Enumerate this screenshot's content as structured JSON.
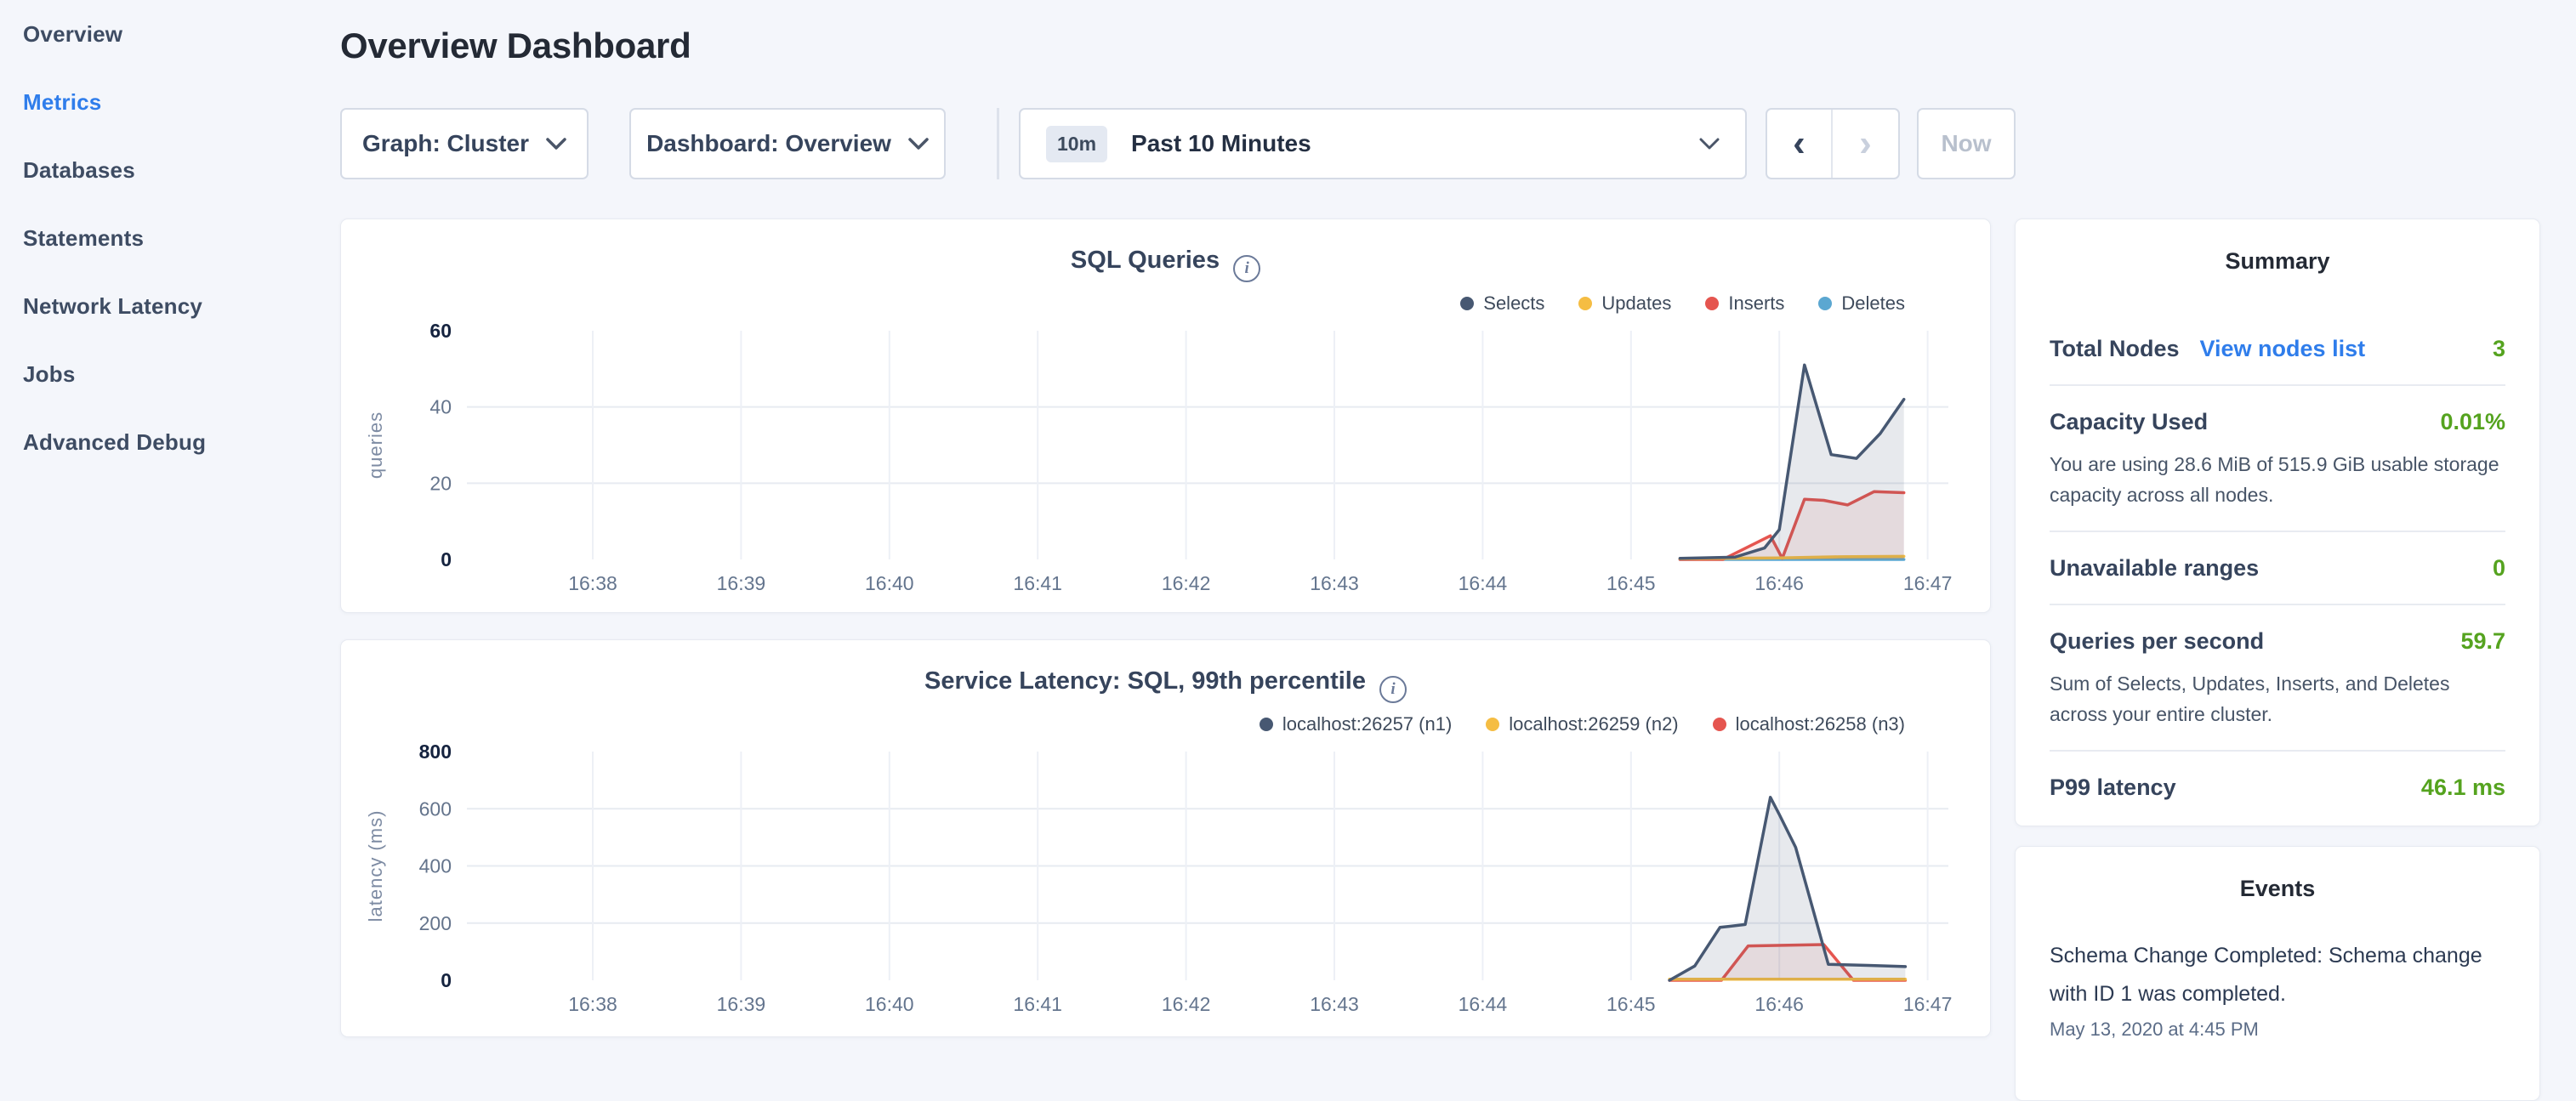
{
  "app": {
    "background": "#f4f6fb",
    "accent_blue": "#2f7deb",
    "accent_green": "#55a31f"
  },
  "sidebar": {
    "items": [
      {
        "label": "Overview",
        "active": false
      },
      {
        "label": "Metrics",
        "active": true
      },
      {
        "label": "Databases",
        "active": false
      },
      {
        "label": "Statements",
        "active": false
      },
      {
        "label": "Network Latency",
        "active": false
      },
      {
        "label": "Jobs",
        "active": false
      },
      {
        "label": "Advanced Debug",
        "active": false
      }
    ]
  },
  "header": {
    "title": "Overview Dashboard"
  },
  "toolbar": {
    "graph_dropdown": "Graph: Cluster",
    "dashboard_dropdown": "Dashboard: Overview",
    "time_badge": "10m",
    "time_label": "Past 10 Minutes",
    "prev_icon": "‹",
    "next_icon": "›",
    "now_label": "Now"
  },
  "summary": {
    "title": "Summary",
    "rows": [
      {
        "label": "Total Nodes",
        "link": "View nodes list",
        "value": "3"
      },
      {
        "label": "Capacity Used",
        "value": "0.01%",
        "desc": "You are using 28.6 MiB of 515.9 GiB usable storage capacity across all nodes."
      },
      {
        "label": "Unavailable ranges",
        "value": "0"
      },
      {
        "label": "Queries per second",
        "value": "59.7",
        "desc": "Sum of Selects, Updates, Inserts, and Deletes across your entire cluster."
      },
      {
        "label": "P99 latency",
        "value": "46.1 ms"
      }
    ]
  },
  "events": {
    "title": "Events",
    "items": [
      {
        "text": "Schema Change Completed: Schema change with ID 1 was completed.",
        "time": "May 13, 2020 at 4:45 PM"
      }
    ]
  },
  "chart_data": [
    {
      "type": "area",
      "title": "SQL Queries",
      "ylabel": "queries",
      "xlabel": "",
      "x_ticks": [
        "16:38",
        "16:39",
        "16:40",
        "16:41",
        "16:42",
        "16:43",
        "16:44",
        "16:45",
        "16:46",
        "16:47"
      ],
      "y_ticks": [
        0,
        20,
        40,
        60
      ],
      "ylim": [
        0,
        60
      ],
      "grid": true,
      "legend_position": "top-right",
      "series": [
        {
          "name": "Selects",
          "color": "#475872",
          "fill": "rgba(71,88,114,0.13)",
          "points": [
            [
              7.33,
              0.3
            ],
            [
              7.7,
              0.6
            ],
            [
              7.9,
              3
            ],
            [
              8.0,
              7.8
            ],
            [
              8.17,
              51
            ],
            [
              8.35,
              27.5
            ],
            [
              8.52,
              26.5
            ],
            [
              8.68,
              33
            ],
            [
              8.84,
              42
            ]
          ]
        },
        {
          "name": "Updates",
          "color": "#f5bd43",
          "fill": "rgba(245,189,67,0.15)",
          "points": [
            [
              7.33,
              0.2
            ],
            [
              8.0,
              0.4
            ],
            [
              8.4,
              0.7
            ],
            [
              8.84,
              0.8
            ]
          ]
        },
        {
          "name": "Inserts",
          "color": "#e5554f",
          "fill": "rgba(229,85,79,0.10)",
          "points": [
            [
              7.33,
              0
            ],
            [
              7.62,
              0
            ],
            [
              7.94,
              6.2
            ],
            [
              8.02,
              0.3
            ],
            [
              8.17,
              15.8
            ],
            [
              8.3,
              15.5
            ],
            [
              8.46,
              14.3
            ],
            [
              8.64,
              17.8
            ],
            [
              8.84,
              17.5
            ]
          ]
        },
        {
          "name": "Deletes",
          "color": "#5ba7d1",
          "fill": "rgba(91,167,209,0.15)",
          "points": [
            [
              7.33,
              0
            ],
            [
              8.84,
              0
            ]
          ]
        }
      ]
    },
    {
      "type": "area",
      "title": "Service Latency: SQL, 99th percentile",
      "ylabel": "latency (ms)",
      "xlabel": "",
      "x_ticks": [
        "16:38",
        "16:39",
        "16:40",
        "16:41",
        "16:42",
        "16:43",
        "16:44",
        "16:45",
        "16:46",
        "16:47"
      ],
      "y_ticks": [
        0,
        200,
        400,
        600,
        800
      ],
      "ylim": [
        0,
        800
      ],
      "grid": true,
      "legend_position": "top-right",
      "series": [
        {
          "name": "localhost:26257 (n1)",
          "color": "#475872",
          "fill": "rgba(71,88,114,0.13)",
          "points": [
            [
              7.26,
              0
            ],
            [
              7.43,
              50
            ],
            [
              7.6,
              185
            ],
            [
              7.77,
              195
            ],
            [
              7.94,
              640
            ],
            [
              8.0,
              580
            ],
            [
              8.11,
              465
            ],
            [
              8.33,
              56
            ],
            [
              8.6,
              52
            ],
            [
              8.85,
              48
            ]
          ]
        },
        {
          "name": "localhost:26259 (n2)",
          "color": "#f5bd43",
          "fill": "rgba(245,189,67,0.15)",
          "points": [
            [
              7.26,
              4
            ],
            [
              8.85,
              4
            ]
          ]
        },
        {
          "name": "localhost:26258 (n3)",
          "color": "#e5554f",
          "fill": "rgba(229,85,79,0.10)",
          "points": [
            [
              7.26,
              0
            ],
            [
              7.61,
              0
            ],
            [
              7.79,
              120
            ],
            [
              8.3,
              125
            ],
            [
              8.5,
              0
            ],
            [
              8.85,
              0
            ]
          ]
        }
      ]
    }
  ]
}
